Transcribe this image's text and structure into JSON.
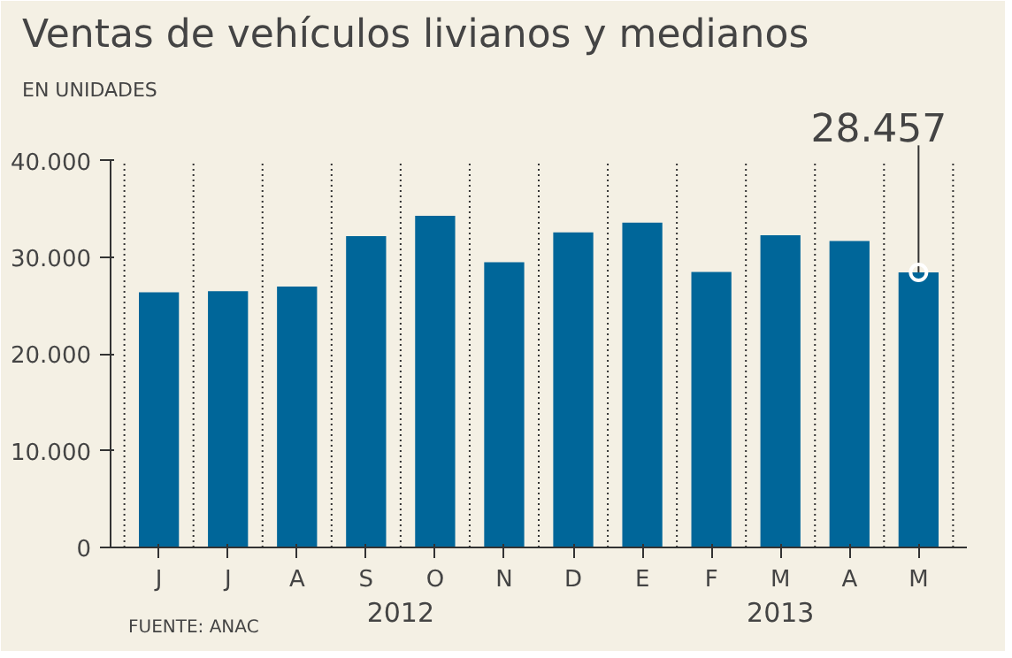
{
  "chart_data": {
    "type": "bar",
    "title": "Ventas de vehículos livianos y medianos",
    "subtitle": "EN UNIDADES",
    "categories": [
      "J",
      "J",
      "A",
      "S",
      "O",
      "N",
      "D",
      "E",
      "F",
      "M",
      "A",
      "M"
    ],
    "values": [
      26400,
      26500,
      27000,
      32200,
      34300,
      29500,
      32600,
      33600,
      28500,
      32300,
      31700,
      28457
    ],
    "value_labels": [
      null,
      null,
      null,
      null,
      null,
      null,
      null,
      null,
      null,
      null,
      null,
      "28.457"
    ],
    "color": "#006699",
    "ylim": [
      0,
      40000
    ],
    "yticks": [
      0,
      {
        "value": 10000,
        "label": "10.000"
      },
      {
        "value": 20000,
        "label": "20.000"
      },
      {
        "value": 30000,
        "label": "30.000"
      },
      {
        "value": 40000,
        "label": "40.000"
      }
    ],
    "grid": "x",
    "annotations": [
      "2012",
      "2013",
      "FUENTE: ANAC"
    ]
  }
}
